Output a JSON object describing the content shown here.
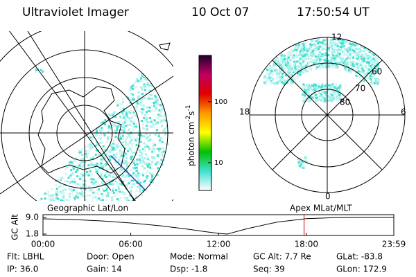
{
  "header": {
    "title": "Ultraviolet Imager",
    "date": "10 Oct 07",
    "time": "17:50:54 UT"
  },
  "geo_map": {
    "label": "Geographic Lat/Lon"
  },
  "polar_map": {
    "label": "Apex MLat/MLT",
    "mlt_labels": [
      "12",
      "18",
      "6",
      "0"
    ],
    "mlat_labels": [
      "60",
      "70",
      "80"
    ]
  },
  "colorbar": {
    "label": "photon cm",
    "sup1": "-2",
    "unit2": "s",
    "sup2": "-1",
    "log": true,
    "clim": [
      3.5,
      575
    ],
    "ticks": [
      10,
      100
    ],
    "colors": [
      "#ffffff",
      "#40e0d0",
      "#00c000",
      "#ffff00",
      "#ff9900",
      "#e00000",
      "#c00060",
      "#200030"
    ]
  },
  "altitude_plot": {
    "type": "line",
    "ylabel": "GC Alt",
    "ylim": [
      1.8,
      9.0
    ],
    "yticks": [
      {
        "value": 9.0,
        "label": "9.0"
      },
      {
        "value": 1.8,
        "label": "1.8"
      }
    ],
    "xlim": [
      0,
      23.983
    ],
    "xticks": [
      {
        "value": 0,
        "label": "00:00"
      },
      {
        "value": 6,
        "label": "06:00"
      },
      {
        "value": 12,
        "label": "12:00"
      },
      {
        "value": 18,
        "label": "18:00"
      },
      {
        "value": 23.983,
        "label": "23:59"
      }
    ],
    "x": [
      0,
      2,
      4,
      6,
      8,
      10,
      11,
      12,
      12.6,
      14,
      16,
      18,
      20,
      22,
      23.983
    ],
    "values": [
      8.4,
      8.1,
      7.5,
      6.6,
      5.4,
      3.8,
      2.9,
      2.1,
      1.8,
      4.2,
      7.0,
      8.5,
      8.9,
      9.0,
      9.0
    ],
    "marker_x": 17.85,
    "marker_color": "#cc0000",
    "color": "#000000"
  },
  "footer": [
    [
      "Flt: LBHL",
      "IP: 36.0"
    ],
    [
      "Door: Open",
      "Gain: 14"
    ],
    [
      "Mode: Normal",
      "Dsp:   -1.8"
    ],
    [
      "GC Alt: 7.7 Re",
      "Seq: 39"
    ],
    [
      "GLat: -83.8",
      "GLon: 172.9"
    ]
  ]
}
